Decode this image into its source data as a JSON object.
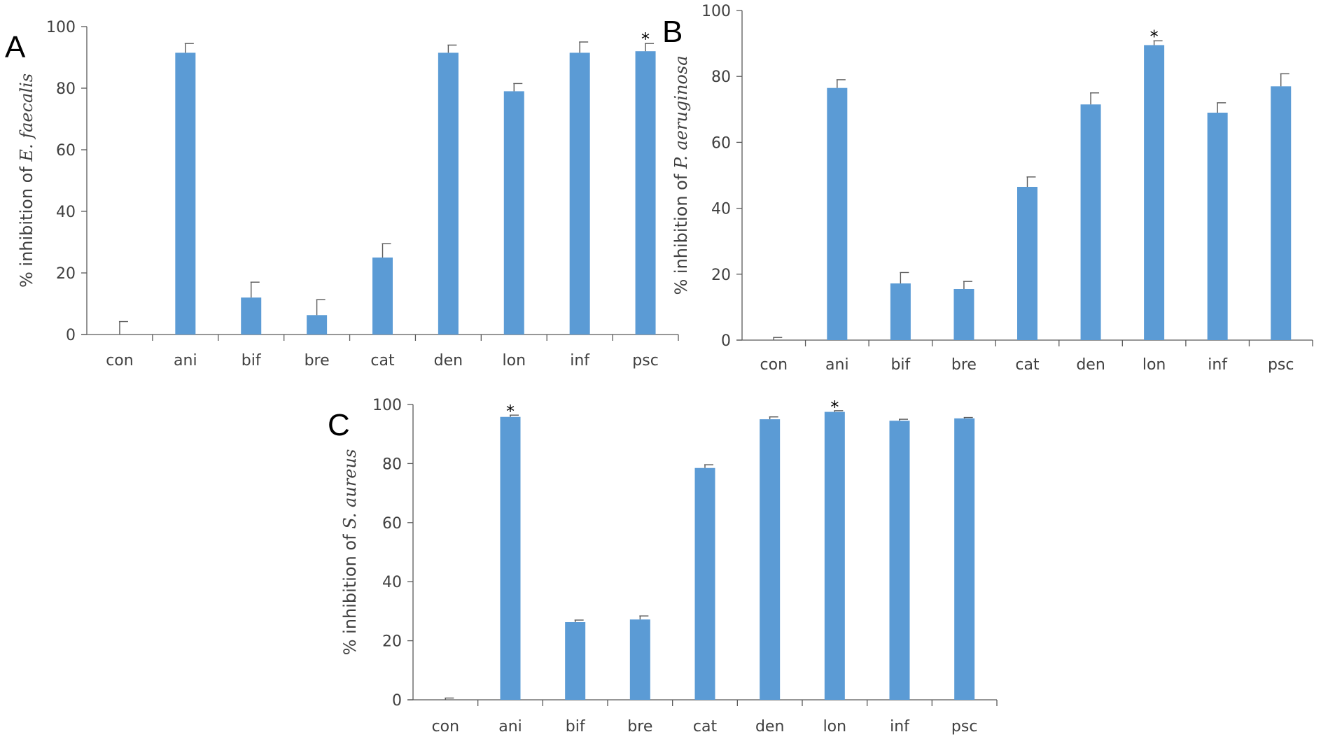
{
  "colors": {
    "bar": "#5b9bd5",
    "axis": "#595959",
    "error": "#595959",
    "text": "#404040"
  },
  "chart_data": [
    {
      "panel": "A",
      "type": "bar",
      "title": "",
      "categories": [
        "con",
        "ani",
        "bif",
        "bre",
        "cat",
        "den",
        "lon",
        "inf",
        "psc"
      ],
      "values": [
        0,
        91.5,
        12,
        6.3,
        25,
        91.5,
        79,
        91.5,
        92
      ],
      "errors": [
        4.2,
        3,
        5,
        5,
        4.5,
        2.5,
        2.5,
        3.5,
        2.5
      ],
      "significant": [
        false,
        false,
        false,
        false,
        false,
        false,
        false,
        false,
        true
      ],
      "ylabel_prefix": "% inhibition of ",
      "ylabel_organism": "E. faecalis",
      "ylim": [
        0,
        100
      ],
      "yticks": [
        0,
        20,
        40,
        60,
        80,
        100
      ]
    },
    {
      "panel": "B",
      "type": "bar",
      "title": "",
      "categories": [
        "con",
        "ani",
        "bif",
        "bre",
        "cat",
        "den",
        "lon",
        "inf",
        "psc"
      ],
      "values": [
        0,
        76.5,
        17.2,
        15.5,
        46.5,
        71.5,
        89.5,
        69,
        77
      ],
      "errors": [
        0.8,
        2.5,
        3.3,
        2.3,
        3,
        3.5,
        1.3,
        3,
        3.8
      ],
      "significant": [
        false,
        false,
        false,
        false,
        false,
        false,
        true,
        false,
        false
      ],
      "ylabel_prefix": "% inhibition of ",
      "ylabel_organism": "P. aeruginosa",
      "ylim": [
        0,
        100
      ],
      "yticks": [
        0,
        20,
        40,
        60,
        80,
        100
      ]
    },
    {
      "panel": "C",
      "type": "bar",
      "title": "",
      "categories": [
        "con",
        "ani",
        "bif",
        "bre",
        "cat",
        "den",
        "lon",
        "inf",
        "psc"
      ],
      "values": [
        0,
        95.8,
        26.3,
        27.2,
        78.5,
        95,
        97.5,
        94.5,
        95.3
      ],
      "errors": [
        0.6,
        0.6,
        0.7,
        1.2,
        1.1,
        0.8,
        0.4,
        0.5,
        0.3
      ],
      "significant": [
        false,
        true,
        false,
        false,
        false,
        false,
        true,
        false,
        false
      ],
      "ylabel_prefix": "% inhibition of ",
      "ylabel_organism": "S. aureus",
      "ylim": [
        0,
        100
      ],
      "yticks": [
        0,
        20,
        40,
        60,
        80,
        100
      ]
    }
  ]
}
